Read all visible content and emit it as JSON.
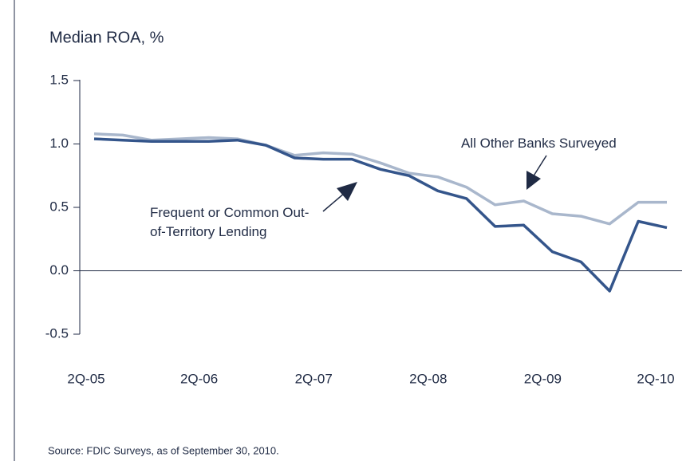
{
  "chart_data": {
    "type": "line",
    "title": "Median ROA, %",
    "source": "Source: FDIC Surveys, as of September 30, 2010.",
    "categories": [
      "2Q-05",
      null,
      null,
      null,
      "2Q-06",
      null,
      null,
      null,
      "2Q-07",
      null,
      null,
      null,
      "2Q-08",
      null,
      null,
      null,
      "2Q-09",
      null,
      null,
      null,
      "2Q-10"
    ],
    "series": [
      {
        "name": "Frequent or Common Out-of-Territory Lending",
        "color": "#34558b",
        "values": [
          1.04,
          1.03,
          1.02,
          1.02,
          1.02,
          1.03,
          0.99,
          0.89,
          0.88,
          0.88,
          0.8,
          0.75,
          0.63,
          0.57,
          0.35,
          0.36,
          0.15,
          0.07,
          -0.16,
          0.39,
          0.34
        ]
      },
      {
        "name": "All Other Banks Surveyed",
        "color": "#a9b7cc",
        "values": [
          1.08,
          1.07,
          1.03,
          1.04,
          1.05,
          1.04,
          0.99,
          0.91,
          0.93,
          0.92,
          0.85,
          0.77,
          0.74,
          0.66,
          0.52,
          0.55,
          0.45,
          0.43,
          0.37,
          0.54,
          0.54
        ]
      }
    ],
    "ylim": [
      -0.5,
      1.5
    ],
    "yticks": [
      1.5,
      {
        "value": 1,
        "label": "1.0"
      },
      0.5,
      {
        "value": 0,
        "label": "0.0"
      },
      -0.5
    ]
  }
}
